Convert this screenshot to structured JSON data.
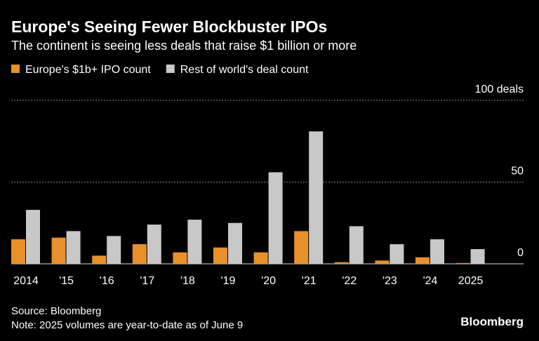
{
  "chart_data": {
    "type": "bar",
    "title": "Europe's Seeing Fewer Blockbuster IPOs",
    "subtitle": "The continent is seeing less deals that raise $1 billion or more",
    "categories": [
      "2014",
      "'15",
      "'16",
      "'17",
      "'18",
      "'19",
      "'20",
      "'21",
      "'22",
      "'23",
      "'24",
      "2025"
    ],
    "series": [
      {
        "name": "Europe's $1b+ IPO count",
        "color": "#e8912a",
        "values": [
          15,
          16,
          5,
          12,
          7,
          10,
          7,
          20,
          1,
          2,
          4,
          0.5
        ]
      },
      {
        "name": "Rest of world's deal count",
        "color": "#c8c8c8",
        "values": [
          33,
          20,
          17,
          24,
          27,
          25,
          56,
          81,
          23,
          12,
          15,
          9
        ]
      }
    ],
    "ylim": [
      0,
      100
    ],
    "yticks": [
      0,
      50,
      {
        "value": 100,
        "label": "100 deals"
      }
    ],
    "grid": true,
    "source": "Source: Bloomberg",
    "note": "Note: 2025 volumes are year-to-date as of June 9",
    "logo": "Bloomberg"
  }
}
